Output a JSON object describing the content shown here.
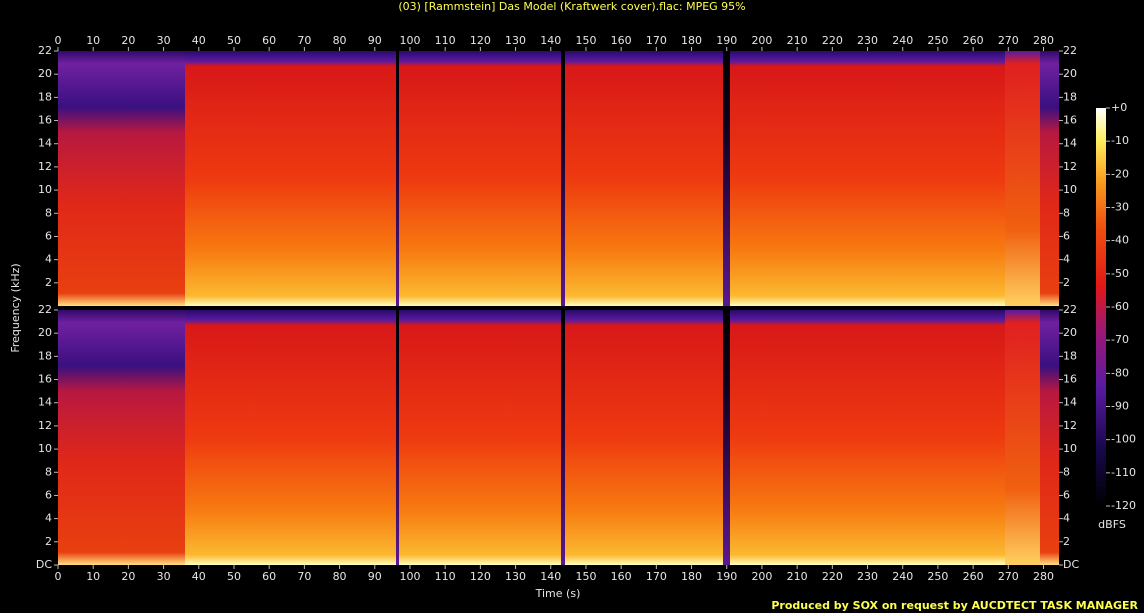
{
  "chart_data": [
    {
      "type": "spectrogram",
      "title": "(03) [Rammstein] Das Model (Kraftwerk cover).flac: MPEG 95%",
      "ylabel": "Frequency (kHz)",
      "xlim": [
        0,
        284.4
      ],
      "xticks": [
        0,
        10,
        20,
        30,
        40,
        50,
        60,
        70,
        80,
        90,
        100,
        110,
        120,
        130,
        140,
        150,
        160,
        170,
        180,
        190,
        200,
        210,
        220,
        230,
        240,
        250,
        260,
        270,
        280
      ],
      "ylim": [
        0,
        22
      ],
      "yticks": [
        2,
        4,
        6,
        8,
        10,
        12,
        14,
        16,
        18,
        20,
        22
      ]
    },
    {
      "type": "spectrogram",
      "xlabel": "Time (s)",
      "xlim": [
        0,
        284.4
      ],
      "xticks": [
        0,
        10,
        20,
        30,
        40,
        50,
        60,
        70,
        80,
        90,
        100,
        110,
        120,
        130,
        140,
        150,
        160,
        170,
        180,
        190,
        200,
        210,
        220,
        230,
        240,
        250,
        260,
        270,
        280
      ],
      "ylim": [
        0,
        22
      ],
      "yticks": [
        {
          "value": 0,
          "label": "DC"
        },
        2,
        4,
        6,
        8,
        10,
        12,
        14,
        16,
        18,
        20,
        22
      ],
      "clim": [
        -120,
        0
      ],
      "cticks": [
        {
          "value": 0,
          "label": "+0"
        },
        -10,
        -20,
        -30,
        -40,
        -50,
        -60,
        -70,
        -80,
        -90,
        -100,
        -110,
        -120
      ],
      "clabel": "dBFS"
    }
  ],
  "footer": "Produced by SOX on request by AUCDTECT TASK MANAGER"
}
